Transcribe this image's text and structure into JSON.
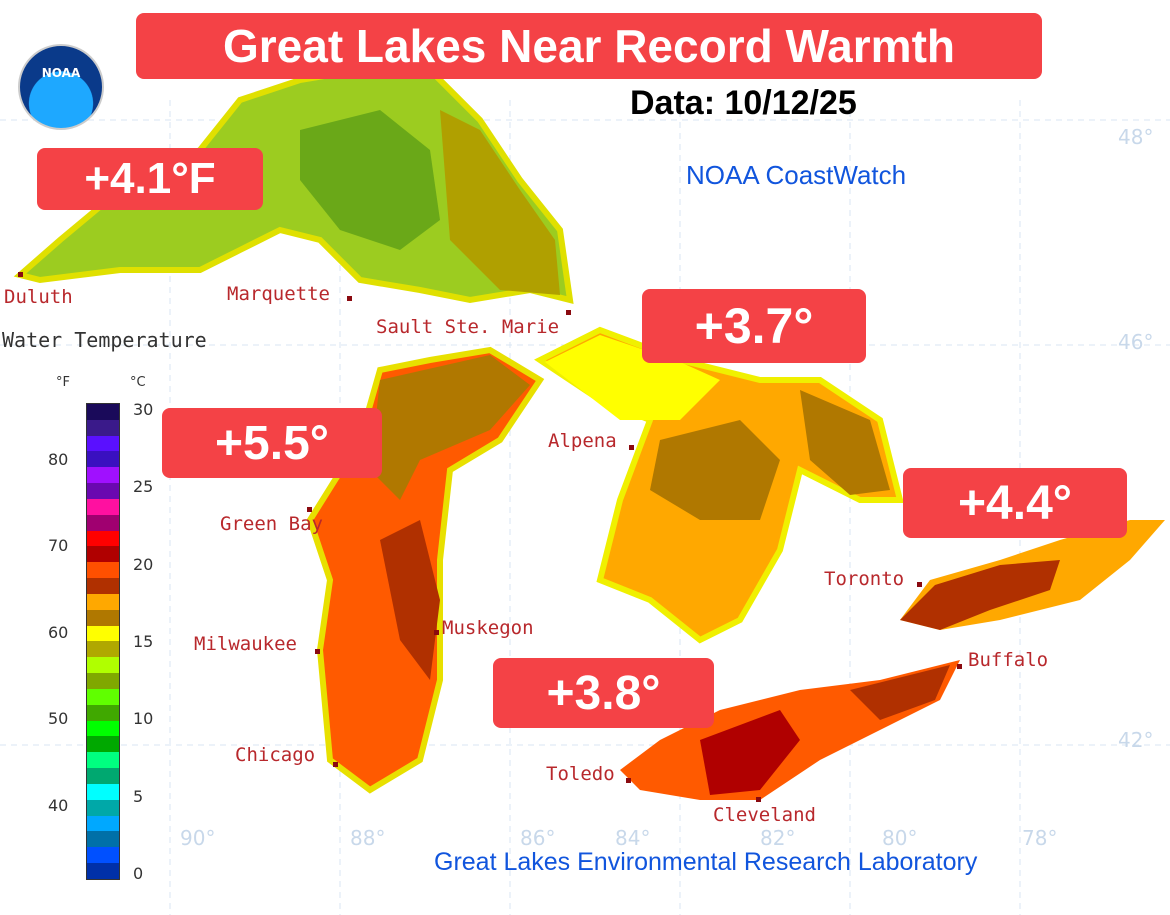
{
  "title": "Great Lakes Near Record Warmth",
  "date": "Data: 10/12/25",
  "source_top": "NOAA CoastWatch",
  "source_bottom": "Great Lakes Environmental Research Laboratory",
  "logo_text": "NOAA",
  "legend": {
    "title": "Water Temperature",
    "unit_f": "°F",
    "unit_c": "°C",
    "f_ticks": [
      "80",
      "70",
      "60",
      "50",
      "40"
    ],
    "c_ticks": [
      "30",
      "25",
      "20",
      "15",
      "10",
      "5",
      "0"
    ],
    "colors": [
      "#1a0a5a",
      "#3a1a8a",
      "#5a10ff",
      "#3a10c0",
      "#a010ff",
      "#6a08b0",
      "#ff10a0",
      "#a00070",
      "#ff0000",
      "#b00000",
      "#ff5000",
      "#b03000",
      "#ffa800",
      "#b07800",
      "#ffff00",
      "#b0a800",
      "#b0ff00",
      "#80a800",
      "#60ff00",
      "#40a800",
      "#00ff00",
      "#00a800",
      "#00ff80",
      "#00a870",
      "#00ffff",
      "#00a8a8",
      "#00a8ff",
      "#0070a8",
      "#0050ff",
      "#0030a8"
    ]
  },
  "anomalies": [
    {
      "lake": "Superior",
      "value": "+4.1°F"
    },
    {
      "lake": "Michigan",
      "value": "+5.5°"
    },
    {
      "lake": "Huron",
      "value": "+3.7°"
    },
    {
      "lake": "Ontario",
      "value": "+4.4°"
    },
    {
      "lake": "Erie",
      "value": "+3.8°"
    }
  ],
  "cities": [
    "Duluth",
    "Marquette",
    "Sault Ste. Marie",
    "Alpena",
    "Green Bay",
    "Milwaukee",
    "Muskegon",
    "Chicago",
    "Toronto",
    "Buffalo",
    "Toledo",
    "Cleveland"
  ],
  "gridlabels": {
    "lat": [
      "48°",
      "46°",
      "42°"
    ],
    "lon": [
      "90°",
      "88°",
      "86°",
      "84°",
      "82°",
      "80°",
      "78°"
    ]
  },
  "colors": {
    "badge": "#f44246",
    "source": "#1155dd",
    "city": "#b8282c"
  }
}
